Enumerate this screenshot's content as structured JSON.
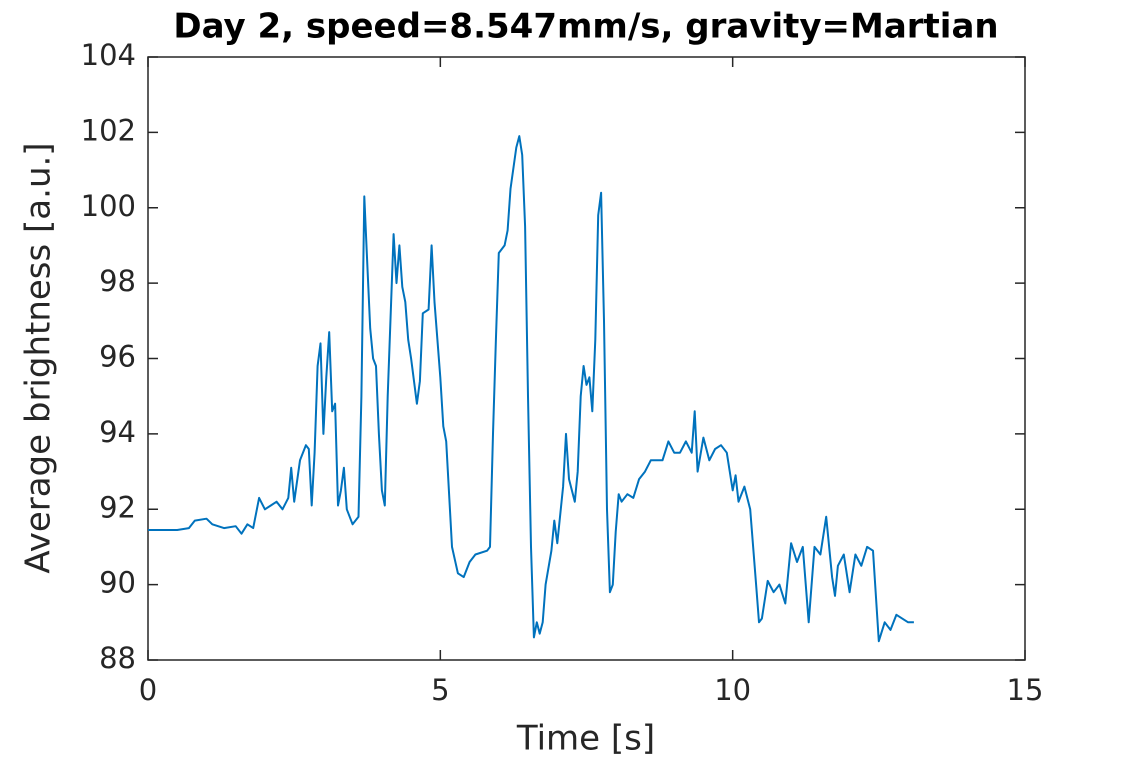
{
  "chart_data": {
    "type": "line",
    "title": "Day 2, speed=8.547mm/s, gravity=Martian",
    "xlabel": "Time [s]",
    "ylabel": "Average brightness [a.u.]",
    "color": "#0072bd",
    "xlim": [
      0,
      15
    ],
    "xticks": [
      0,
      5,
      10,
      15
    ],
    "ylim": [
      88,
      104
    ],
    "yticks": [
      88,
      90,
      92,
      94,
      96,
      98,
      100,
      102,
      104
    ],
    "grid": false,
    "x": [
      0,
      0.5,
      0.7,
      0.8,
      1.0,
      1.1,
      1.3,
      1.5,
      1.6,
      1.7,
      1.8,
      1.9,
      2.0,
      2.1,
      2.2,
      2.3,
      2.4,
      2.45,
      2.5,
      2.6,
      2.7,
      2.75,
      2.8,
      2.85,
      2.9,
      2.95,
      3.0,
      3.05,
      3.1,
      3.15,
      3.2,
      3.25,
      3.3,
      3.35,
      3.4,
      3.5,
      3.6,
      3.65,
      3.7,
      3.75,
      3.8,
      3.85,
      3.9,
      3.95,
      4.0,
      4.05,
      4.1,
      4.2,
      4.25,
      4.3,
      4.35,
      4.4,
      4.45,
      4.5,
      4.6,
      4.65,
      4.7,
      4.8,
      4.85,
      4.9,
      5.0,
      5.05,
      5.1,
      5.2,
      5.3,
      5.4,
      5.5,
      5.6,
      5.8,
      5.85,
      5.9,
      5.95,
      6.0,
      6.1,
      6.15,
      6.2,
      6.3,
      6.35,
      6.4,
      6.45,
      6.5,
      6.55,
      6.6,
      6.65,
      6.7,
      6.75,
      6.8,
      6.9,
      6.95,
      7.0,
      7.1,
      7.15,
      7.2,
      7.3,
      7.35,
      7.4,
      7.45,
      7.5,
      7.55,
      7.6,
      7.65,
      7.7,
      7.75,
      7.8,
      7.85,
      7.9,
      7.95,
      8.0,
      8.05,
      8.1,
      8.2,
      8.3,
      8.4,
      8.5,
      8.6,
      8.8,
      8.9,
      9.0,
      9.1,
      9.2,
      9.3,
      9.35,
      9.4,
      9.5,
      9.6,
      9.7,
      9.8,
      9.9,
      10.0,
      10.05,
      10.1,
      10.2,
      10.3,
      10.4,
      10.45,
      10.5,
      10.6,
      10.7,
      10.8,
      10.9,
      11.0,
      11.1,
      11.2,
      11.3,
      11.4,
      11.5,
      11.6,
      11.7,
      11.75,
      11.8,
      11.9,
      12.0,
      12.1,
      12.2,
      12.3,
      12.4,
      12.5,
      12.6,
      12.7,
      12.8,
      13.0,
      13.1
    ],
    "values": [
      91.45,
      91.45,
      91.5,
      91.7,
      91.75,
      91.6,
      91.5,
      91.55,
      91.35,
      91.6,
      91.5,
      92.3,
      92.0,
      92.1,
      92.2,
      92.0,
      92.3,
      93.1,
      92.2,
      93.3,
      93.7,
      93.6,
      92.1,
      93.5,
      95.8,
      96.4,
      94.0,
      95.5,
      96.7,
      94.6,
      94.8,
      92.1,
      92.5,
      93.1,
      92.0,
      91.6,
      91.8,
      95.0,
      100.3,
      98.5,
      96.8,
      96.0,
      95.8,
      94.0,
      92.5,
      92.1,
      95.0,
      99.3,
      98.0,
      99.0,
      97.9,
      97.5,
      96.5,
      96.0,
      94.8,
      95.4,
      97.2,
      97.3,
      99.0,
      97.5,
      95.5,
      94.2,
      93.8,
      91.0,
      90.3,
      90.2,
      90.6,
      90.8,
      90.9,
      91.0,
      94.0,
      96.5,
      98.8,
      99.0,
      99.4,
      100.5,
      101.6,
      101.9,
      101.4,
      99.5,
      95.0,
      91.0,
      88.6,
      89.0,
      88.7,
      89.0,
      90.0,
      90.9,
      91.7,
      91.1,
      92.6,
      94.0,
      92.8,
      92.2,
      93.0,
      95.0,
      95.8,
      95.3,
      95.5,
      94.6,
      96.5,
      99.8,
      100.4,
      97.0,
      92.0,
      89.8,
      90.0,
      91.4,
      92.4,
      92.2,
      92.4,
      92.3,
      92.8,
      93.0,
      93.3,
      93.3,
      93.8,
      93.5,
      93.5,
      93.8,
      93.5,
      94.6,
      93.0,
      93.9,
      93.3,
      93.6,
      93.7,
      93.5,
      92.5,
      92.9,
      92.2,
      92.6,
      92.0,
      90.0,
      89.0,
      89.1,
      90.1,
      89.8,
      90.0,
      89.5,
      91.1,
      90.6,
      91.0,
      89.0,
      91.0,
      90.8,
      91.8,
      90.2,
      89.7,
      90.5,
      90.8,
      89.8,
      90.8,
      90.5,
      91.0,
      90.9,
      88.5,
      89.0,
      88.8,
      89.2,
      89.0,
      89.0
    ]
  }
}
